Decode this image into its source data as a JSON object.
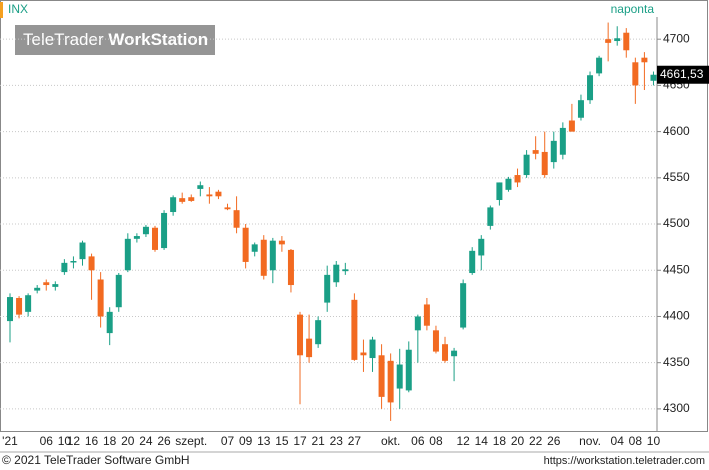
{
  "chart_data": {
    "type": "candlestick",
    "symbol": "INX",
    "interval": "naponta",
    "watermark": [
      "TeleTrader",
      "WorkStation"
    ],
    "footer_left": "© 2021 TeleTrader Software GmbH",
    "footer_right": "https://workstation.teletrader.com",
    "last_label": "4661,53",
    "up_color": "#1a9f86",
    "down_color": "#f26a21",
    "categories": [
      "'21",
      null,
      null,
      null,
      "06",
      null,
      "10",
      "12",
      null,
      "16",
      null,
      "18",
      null,
      "20",
      null,
      "24",
      null,
      "26",
      null,
      null,
      "szept.",
      null,
      null,
      null,
      "07",
      null,
      "09",
      null,
      "13",
      null,
      "15",
      null,
      "17",
      null,
      "21",
      null,
      "23",
      null,
      "27",
      null,
      null,
      null,
      "okt.",
      null,
      null,
      "06",
      null,
      "08",
      null,
      null,
      "12",
      null,
      "14",
      null,
      "18",
      null,
      "20",
      null,
      "22",
      null,
      "26",
      null,
      null,
      null,
      "nov.",
      null,
      null,
      "04",
      null,
      "08",
      null,
      "10"
    ],
    "open": [
      4395,
      4420,
      4405,
      4428,
      4437,
      4432,
      4448,
      4460,
      4462,
      4465,
      4440,
      4382,
      4410,
      4450,
      4484,
      4489,
      4496,
      4474,
      4513,
      4528,
      4529,
      4538,
      4532,
      4535,
      4518,
      4515,
      4496,
      4470,
      4483,
      4450,
      4482,
      4472,
      4402,
      4376,
      4370,
      4415,
      4437,
      4449,
      4418,
      4361,
      4355,
      4358,
      4352,
      4322,
      4320,
      4385,
      4413,
      4385,
      4370,
      4357,
      4388,
      4447,
      4466,
      4498,
      4526,
      4537,
      4553,
      4553,
      4580,
      4578,
      4567,
      4575,
      4612,
      4615,
      4634,
      4663,
      4700,
      4698,
      4707,
      4675,
      4680,
      4655
    ],
    "high": [
      4425,
      4422,
      4425,
      4434,
      4440,
      4438,
      4462,
      4465,
      4482,
      4468,
      4448,
      4410,
      4447,
      4490,
      4490,
      4499,
      4498,
      4515,
      4531,
      4534,
      4532,
      4546,
      4540,
      4537,
      4522,
      4530,
      4500,
      4480,
      4488,
      4485,
      4487,
      4473,
      4405,
      4402,
      4400,
      4455,
      4460,
      4458,
      4425,
      4375,
      4378,
      4370,
      4360,
      4365,
      4373,
      4402,
      4420,
      4390,
      4378,
      4366,
      4440,
      4475,
      4488,
      4520,
      4545,
      4551,
      4560,
      4580,
      4595,
      4600,
      4600,
      4610,
      4630,
      4640,
      4665,
      4682,
      4718,
      4714,
      4712,
      4680,
      4686,
      4665
    ],
    "low": [
      4372,
      4398,
      4400,
      4425,
      4428,
      4428,
      4445,
      4452,
      4455,
      4418,
      4388,
      4369,
      4405,
      4448,
      4480,
      4486,
      4470,
      4472,
      4509,
      4522,
      4524,
      4530,
      4522,
      4527,
      4515,
      4490,
      4452,
      4465,
      4440,
      4436,
      4470,
      4426,
      4305,
      4350,
      4366,
      4405,
      4432,
      4445,
      4352,
      4340,
      4340,
      4300,
      4287,
      4300,
      4318,
      4350,
      4385,
      4360,
      4350,
      4330,
      4386,
      4445,
      4450,
      4494,
      4520,
      4535,
      4540,
      4550,
      4570,
      4550,
      4560,
      4570,
      4600,
      4612,
      4630,
      4660,
      4676,
      4693,
      4680,
      4630,
      4645,
      4650
    ],
    "close": [
      4421,
      4402,
      4423,
      4431,
      4434,
      4435,
      4458,
      4460,
      4480,
      4450,
      4400,
      4405,
      4445,
      4484,
      4487,
      4497,
      4472,
      4512,
      4529,
      4524,
      4525,
      4542,
      4530,
      4530,
      4516,
      4496,
      4459,
      4478,
      4444,
      4482,
      4478,
      4434,
      4358,
      4356,
      4396,
      4445,
      4456,
      4451,
      4353,
      4358,
      4375,
      4313,
      4307,
      4348,
      4364,
      4400,
      4390,
      4362,
      4352,
      4363,
      4436,
      4471,
      4484,
      4518,
      4545,
      4549,
      4545,
      4575,
      4576,
      4553,
      4590,
      4604,
      4600,
      4634,
      4661,
      4680,
      4696,
      4701,
      4688,
      4650,
      4675,
      4661.53
    ],
    "ylim": [
      4275,
      4724
    ],
    "yticks": [
      4300,
      4350,
      4400,
      4450,
      4500,
      4550,
      4600,
      4650,
      4700
    ],
    "grid": true
  }
}
